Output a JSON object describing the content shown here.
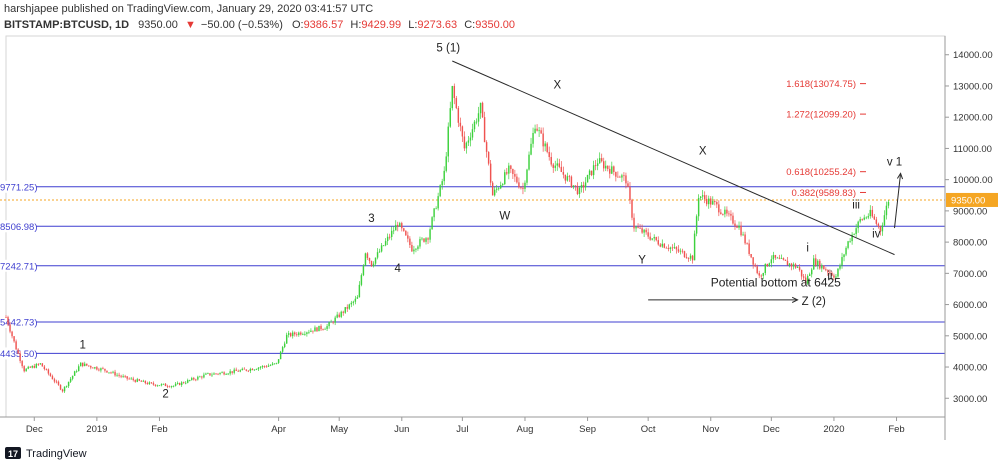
{
  "header": {
    "line1": "harshjapee published on TradingView.com, January 29, 2020 03:41:57 UTC",
    "symbol": "BITSTAMP:BTCUSD, 1D",
    "last": "9350.00",
    "change": "−50.00 (−0.53%)",
    "o_label": "O:",
    "o": "9386.57",
    "h_label": "H:",
    "h": "9429.99",
    "l_label": "L:",
    "l": "9273.63",
    "c_label": "C:",
    "c": "9350.00"
  },
  "footer": {
    "brand": "TradingView"
  },
  "colors": {
    "up": "#26a69a",
    "up_bright": "#3dd13d",
    "down": "#ef5350",
    "hline": "#3f3fd0",
    "fib": "#e53935",
    "last_price": "#f5a623",
    "axis_text": "#333333",
    "header_red": "#e53935"
  },
  "chart_data": {
    "type": "candlestick",
    "ylim": [
      2400,
      14600
    ],
    "y_axis_ticks": [
      3000,
      4000,
      5000,
      6000,
      7000,
      8000,
      9000,
      10000,
      11000,
      12000,
      13000,
      14000
    ],
    "y_axis_tick_labels": [
      "3000.00",
      "4000.00",
      "5000.00",
      "6000.00",
      "7000.00",
      "8000.00",
      "9000.00",
      "10000.00",
      "11000.00",
      "12000.00",
      "13000.00",
      "14000.00"
    ],
    "x_axis_ticks": [
      {
        "label": "Dec",
        "date": "2018-12-01"
      },
      {
        "label": "2019",
        "date": "2019-01-01"
      },
      {
        "label": "Feb",
        "date": "2019-02-01"
      },
      {
        "label": "Apr",
        "date": "2019-04-01"
      },
      {
        "label": "May",
        "date": "2019-05-01"
      },
      {
        "label": "Jun",
        "date": "2019-06-01"
      },
      {
        "label": "Jul",
        "date": "2019-07-01"
      },
      {
        "label": "Aug",
        "date": "2019-08-01"
      },
      {
        "label": "Sep",
        "date": "2019-09-01"
      },
      {
        "label": "Oct",
        "date": "2019-10-01"
      },
      {
        "label": "Nov",
        "date": "2019-11-01"
      },
      {
        "label": "Dec",
        "date": "2019-12-01"
      },
      {
        "label": "2020",
        "date": "2020-01-01"
      },
      {
        "label": "Feb",
        "date": "2020-02-01"
      }
    ],
    "x_range": [
      "2018-11-17",
      "2020-02-25"
    ],
    "price_path": [
      {
        "date": "2018-11-17",
        "close": 5600
      },
      {
        "date": "2018-11-22",
        "close": 4600
      },
      {
        "date": "2018-11-26",
        "close": 3900
      },
      {
        "date": "2018-12-04",
        "close": 4100
      },
      {
        "date": "2018-12-15",
        "close": 3250
      },
      {
        "date": "2018-12-24",
        "close": 4100
      },
      {
        "date": "2019-01-05",
        "close": 3900
      },
      {
        "date": "2019-01-15",
        "close": 3650
      },
      {
        "date": "2019-01-28",
        "close": 3450
      },
      {
        "date": "2019-02-08",
        "close": 3400
      },
      {
        "date": "2019-02-24",
        "close": 3750
      },
      {
        "date": "2019-03-15",
        "close": 3900
      },
      {
        "date": "2019-03-31",
        "close": 4100
      },
      {
        "date": "2019-04-05",
        "close": 5000
      },
      {
        "date": "2019-04-25",
        "close": 5300
      },
      {
        "date": "2019-05-10",
        "close": 6200
      },
      {
        "date": "2019-05-14",
        "close": 7700
      },
      {
        "date": "2019-05-17",
        "close": 7300
      },
      {
        "date": "2019-05-30",
        "close": 8600
      },
      {
        "date": "2019-06-06",
        "close": 7800
      },
      {
        "date": "2019-06-14",
        "close": 8200
      },
      {
        "date": "2019-06-22",
        "close": 10200
      },
      {
        "date": "2019-06-26",
        "close": 12900
      },
      {
        "date": "2019-07-02",
        "close": 11000
      },
      {
        "date": "2019-07-10",
        "close": 12300
      },
      {
        "date": "2019-07-16",
        "close": 9500
      },
      {
        "date": "2019-07-24",
        "close": 10300
      },
      {
        "date": "2019-07-31",
        "close": 9700
      },
      {
        "date": "2019-08-06",
        "close": 11800
      },
      {
        "date": "2019-08-14",
        "close": 10600
      },
      {
        "date": "2019-08-28",
        "close": 9600
      },
      {
        "date": "2019-09-06",
        "close": 10600
      },
      {
        "date": "2019-09-20",
        "close": 10000
      },
      {
        "date": "2019-09-24",
        "close": 8500
      },
      {
        "date": "2019-10-06",
        "close": 8000
      },
      {
        "date": "2019-10-23",
        "close": 7500
      },
      {
        "date": "2019-10-26",
        "close": 9500
      },
      {
        "date": "2019-11-03",
        "close": 9200
      },
      {
        "date": "2019-11-15",
        "close": 8500
      },
      {
        "date": "2019-11-25",
        "close": 6900
      },
      {
        "date": "2019-12-01",
        "close": 7500
      },
      {
        "date": "2019-12-14",
        "close": 7200
      },
      {
        "date": "2019-12-18",
        "close": 6700
      },
      {
        "date": "2019-12-22",
        "close": 7400
      },
      {
        "date": "2020-01-02",
        "close": 6900
      },
      {
        "date": "2020-01-08",
        "close": 8000
      },
      {
        "date": "2020-01-14",
        "close": 8700
      },
      {
        "date": "2020-01-19",
        "close": 8900
      },
      {
        "date": "2020-01-24",
        "close": 8400
      },
      {
        "date": "2020-01-28",
        "close": 9350
      }
    ],
    "last_price": 9350.0,
    "last_price_label": "9350.00",
    "horizontal_levels": [
      {
        "value": 9771.25,
        "label": "9771.25)"
      },
      {
        "value": 8506.98,
        "label": "8506.98)"
      },
      {
        "value": 7242.71,
        "label": "7242.71)"
      },
      {
        "value": 5442.73,
        "label": "5442.73)"
      },
      {
        "value": 4435.5,
        "label": "4435.50)"
      }
    ],
    "fib_levels": [
      {
        "value": 13074.75,
        "label": "1.618(13074.75)"
      },
      {
        "value": 12099.2,
        "label": "1.272(12099.20)"
      },
      {
        "value": 10255.24,
        "label": "0.618(10255.24)"
      },
      {
        "value": 9589.83,
        "label": "0.382(9589.83)"
      }
    ],
    "trendline": {
      "from": {
        "date": "2019-06-26",
        "price": 13800
      },
      "to": {
        "date": "2020-01-31",
        "price": 7600
      }
    },
    "arrows": [
      {
        "from": {
          "date": "2019-10-01",
          "price": 6150
        },
        "to": {
          "date": "2019-12-14",
          "price": 6150
        }
      },
      {
        "from": {
          "date": "2020-01-31",
          "price": 8450
        },
        "to": {
          "date": "2020-02-03",
          "price": 10200
        }
      }
    ],
    "annotations": [
      {
        "text": "1",
        "date": "2018-12-25",
        "price": 4600
      },
      {
        "text": "2",
        "date": "2019-02-04",
        "price": 3020
      },
      {
        "text": "3",
        "date": "2019-05-17",
        "price": 8650
      },
      {
        "text": "4",
        "date": "2019-05-30",
        "price": 7050
      },
      {
        "text": "5 (1)",
        "date": "2019-06-24",
        "price": 14100
      },
      {
        "text": "X",
        "date": "2019-08-17",
        "price": 12920
      },
      {
        "text": "W",
        "date": "2019-07-22",
        "price": 8720
      },
      {
        "text": "X",
        "date": "2019-10-28",
        "price": 10800
      },
      {
        "text": "Y",
        "date": "2019-09-28",
        "price": 7310
      },
      {
        "text": "Potential bottom at 6425",
        "date": "2019-11-01",
        "price": 6580
      },
      {
        "text": "Z (2)",
        "date": "2019-12-22",
        "price": 5980
      },
      {
        "text": "i",
        "date": "2019-12-19",
        "price": 7700
      },
      {
        "text": "ii",
        "date": "2019-12-30",
        "price": 6810
      },
      {
        "text": "iii",
        "date": "2020-01-12",
        "price": 9080
      },
      {
        "text": "iv",
        "date": "2020-01-22",
        "price": 8150
      },
      {
        "text": "v 1",
        "date": "2020-01-31",
        "price": 10450
      }
    ]
  }
}
